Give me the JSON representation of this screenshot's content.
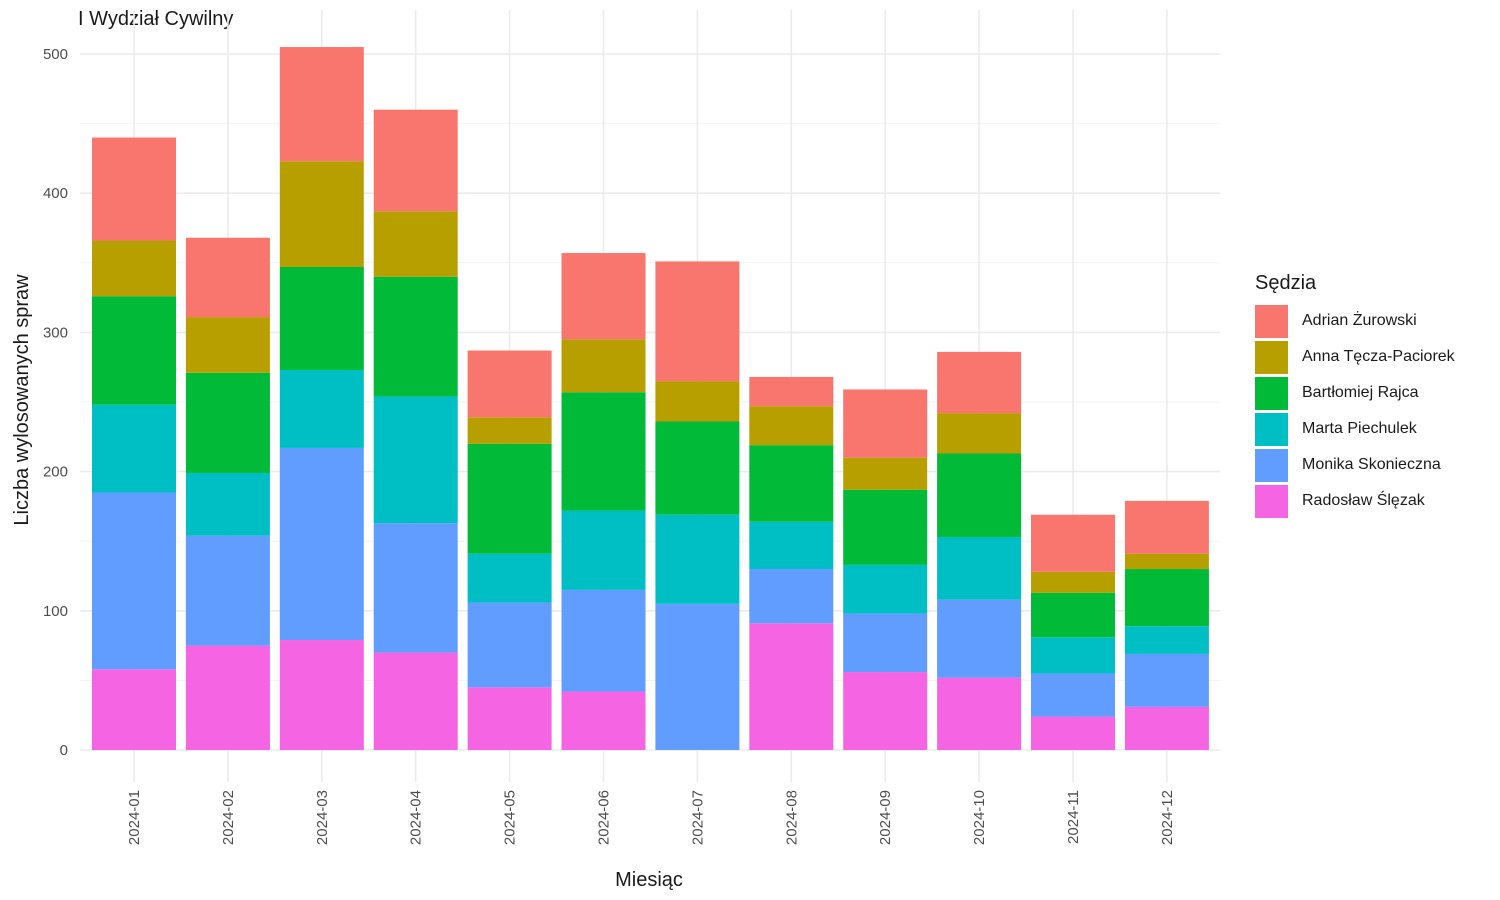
{
  "chart_data": {
    "type": "bar",
    "stacked": true,
    "title": "I Wydział Cywilny",
    "xlabel": "Miesiąc",
    "ylabel": "Liczba wylosowanych spraw",
    "ylim": [
      0,
      520
    ],
    "yticks": [
      0,
      100,
      200,
      300,
      400,
      500
    ],
    "grid": true,
    "legend_position": "right",
    "legend_title": "Sędzia",
    "categories": [
      "2024-01",
      "2024-02",
      "2024-03",
      "2024-04",
      "2024-05",
      "2024-06",
      "2024-07",
      "2024-08",
      "2024-09",
      "2024-10",
      "2024-11",
      "2024-12"
    ],
    "series": [
      {
        "name": "Radosław Ślęzak",
        "color": "#F564E3",
        "values": [
          58,
          75,
          79,
          70,
          45,
          42,
          0,
          91,
          56,
          52,
          24,
          31
        ]
      },
      {
        "name": "Monika Skonieczna",
        "color": "#619CFF",
        "values": [
          127,
          79,
          138,
          93,
          61,
          73,
          105,
          39,
          42,
          56,
          31,
          38
        ]
      },
      {
        "name": "Marta Piechulek",
        "color": "#00BFC4",
        "values": [
          63,
          45,
          56,
          91,
          35,
          57,
          64,
          34,
          35,
          45,
          26,
          20
        ]
      },
      {
        "name": "Bartłomiej Rajca",
        "color": "#00BA38",
        "values": [
          78,
          72,
          74,
          86,
          79,
          85,
          67,
          55,
          54,
          60,
          32,
          41
        ]
      },
      {
        "name": "Anna Tęcza-Paciorek",
        "color": "#B79F00",
        "values": [
          40,
          40,
          76,
          47,
          19,
          38,
          29,
          28,
          23,
          29,
          15,
          11
        ]
      },
      {
        "name": "Adrian Żurowski",
        "color": "#F8766D",
        "values": [
          74,
          57,
          82,
          73,
          48,
          62,
          86,
          21,
          49,
          44,
          41,
          38
        ]
      }
    ],
    "legend_order": [
      "Adrian Żurowski",
      "Anna Tęcza-Paciorek",
      "Bartłomiej Rajca",
      "Marta Piechulek",
      "Monika Skonieczna",
      "Radosław Ślęzak"
    ]
  }
}
